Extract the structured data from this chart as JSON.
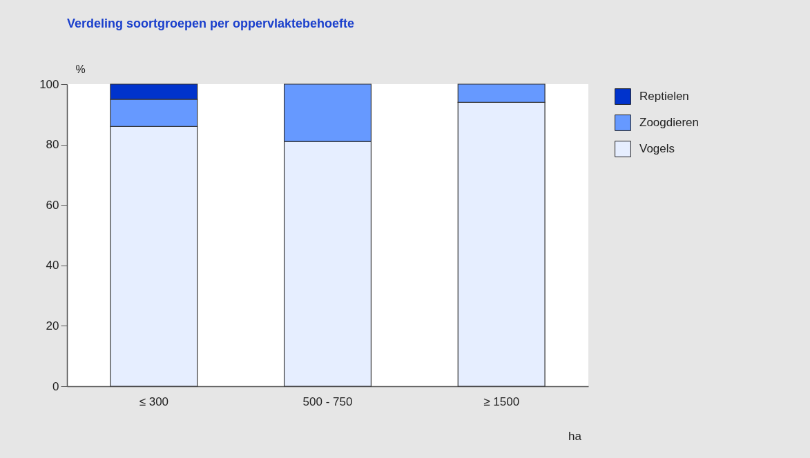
{
  "chart_data": {
    "type": "bar",
    "title": "Verdeling soortgroepen per oppervlaktebehoefte",
    "xlabel": "ha",
    "ylabel": "%",
    "categories": [
      "≤ 300",
      "500 - 750",
      "≥ 1500"
    ],
    "stacked": true,
    "series": [
      {
        "name": "Vogels",
        "color": "#e6eeff",
        "values": [
          86,
          81,
          94
        ]
      },
      {
        "name": "Zoogdieren",
        "color": "#6699ff",
        "values": [
          9,
          19,
          6
        ]
      },
      {
        "name": "Reptielen",
        "color": "#0033cc",
        "values": [
          5,
          null,
          null
        ]
      }
    ],
    "ylim": [
      0,
      100
    ],
    "yticks": [
      0,
      20,
      40,
      60,
      80,
      100
    ],
    "legend": "top right"
  }
}
